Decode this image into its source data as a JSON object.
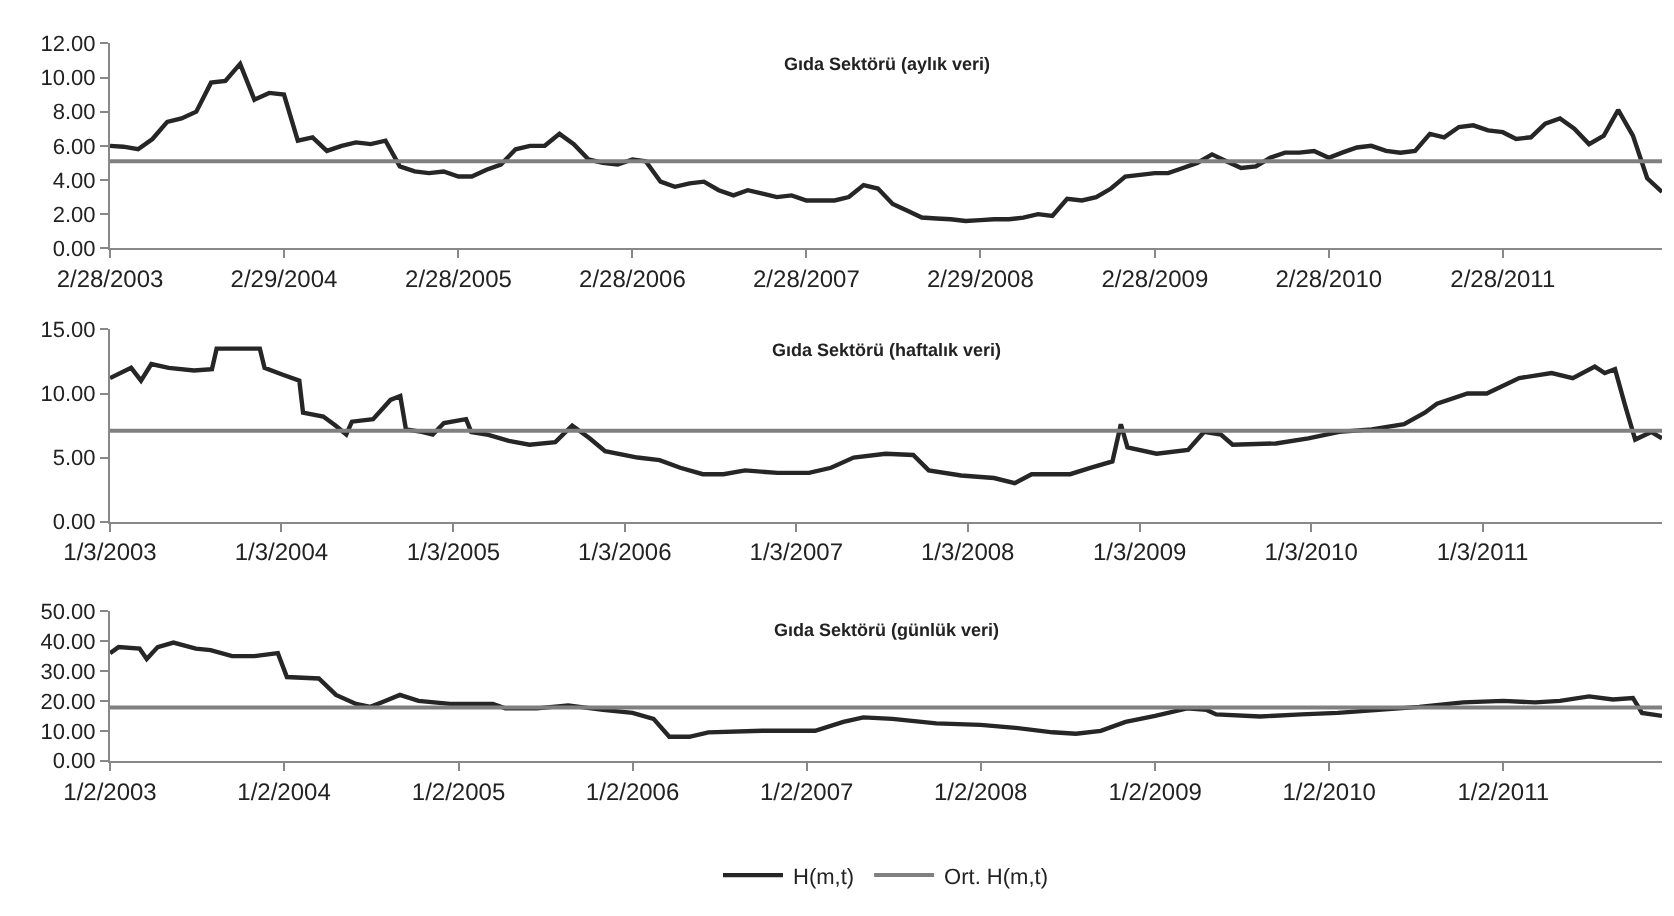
{
  "chart_data": [
    {
      "type": "line",
      "title": "Gıda Sektörü (aylık veri)",
      "x": [
        "2003-02",
        "2003-03",
        "2003-04",
        "2003-05",
        "2003-06",
        "2003-07",
        "2003-08",
        "2003-09",
        "2003-10",
        "2003-11",
        "2003-12",
        "2004-01",
        "2004-02",
        "2004-03",
        "2004-04",
        "2004-05",
        "2004-06",
        "2004-07",
        "2004-08",
        "2004-09",
        "2004-10",
        "2004-11",
        "2004-12",
        "2005-01",
        "2005-02",
        "2005-03",
        "2005-04",
        "2005-05",
        "2005-06",
        "2005-07",
        "2005-08",
        "2005-09",
        "2005-10",
        "2005-11",
        "2005-12",
        "2006-01",
        "2006-02",
        "2006-03",
        "2006-04",
        "2006-05",
        "2006-06",
        "2006-07",
        "2006-08",
        "2006-09",
        "2006-10",
        "2006-11",
        "2006-12",
        "2007-01",
        "2007-02",
        "2007-03",
        "2007-04",
        "2007-05",
        "2007-06",
        "2007-07",
        "2007-08",
        "2007-09",
        "2007-10",
        "2007-11",
        "2007-12",
        "2008-01",
        "2008-02",
        "2008-03",
        "2008-04",
        "2008-05",
        "2008-06",
        "2008-07",
        "2008-08",
        "2008-09",
        "2008-10",
        "2008-11",
        "2008-12",
        "2009-01",
        "2009-02",
        "2009-03",
        "2009-04",
        "2009-05",
        "2009-06",
        "2009-07",
        "2009-08",
        "2009-09",
        "2009-10",
        "2009-11",
        "2009-12",
        "2010-01",
        "2010-02",
        "2010-03",
        "2010-04",
        "2010-05",
        "2010-06",
        "2010-07",
        "2010-08",
        "2010-09",
        "2010-10",
        "2010-11",
        "2010-12",
        "2011-01",
        "2011-02",
        "2011-03",
        "2011-04",
        "2011-05",
        "2011-06",
        "2011-07",
        "2011-08",
        "2011-09",
        "2011-10",
        "2011-11",
        "2011-12",
        "2012-01"
      ],
      "series": [
        {
          "color": "#262626",
          "values": [
            6.0,
            5.95,
            5.8,
            6.4,
            7.4,
            7.6,
            8.0,
            9.7,
            9.8,
            10.8,
            8.7,
            9.1,
            9.0,
            6.3,
            6.5,
            5.7,
            6.0,
            6.2,
            6.1,
            6.3,
            4.8,
            4.5,
            4.4,
            4.5,
            4.2,
            4.2,
            4.6,
            4.9,
            5.8,
            6.0,
            6.0,
            6.7,
            6.1,
            5.2,
            5.0,
            4.9,
            5.2,
            5.1,
            3.9,
            3.6,
            3.8,
            3.9,
            3.4,
            3.1,
            3.4,
            3.2,
            3.0,
            3.1,
            2.8,
            2.8,
            2.8,
            3.0,
            3.7,
            3.5,
            2.6,
            2.2,
            1.8,
            1.75,
            1.7,
            1.6,
            1.65,
            1.7,
            1.7,
            1.8,
            2.0,
            1.9,
            2.9,
            2.8,
            3.0,
            3.5,
            4.2,
            4.3,
            4.4,
            4.4,
            4.7,
            5.0,
            5.5,
            5.1,
            4.7,
            4.8,
            5.3,
            5.6,
            5.6,
            5.7,
            5.3,
            5.6,
            5.9,
            6.0,
            5.7,
            5.6,
            5.7,
            6.7,
            6.5,
            7.1,
            7.2,
            6.9,
            6.8,
            6.4,
            6.5,
            7.3,
            7.6,
            7.0,
            6.1,
            6.6,
            8.1,
            6.6,
            4.1,
            3.3
          ]
        }
      ],
      "ref_lines": [
        {
          "axis": "y",
          "value": 5.1,
          "color": "#808080"
        }
      ],
      "xlim": [
        "2003-02",
        "2012-01"
      ],
      "xticks": [
        {
          "value": "2003-02",
          "label": "2/28/2003"
        },
        {
          "value": "2004-02",
          "label": "2/29/2004"
        },
        {
          "value": "2005-02",
          "label": "2/28/2005"
        },
        {
          "value": "2006-02",
          "label": "2/28/2006"
        },
        {
          "value": "2007-02",
          "label": "2/28/2007"
        },
        {
          "value": "2008-02",
          "label": "2/29/2008"
        },
        {
          "value": "2009-02",
          "label": "2/28/2009"
        },
        {
          "value": "2010-02",
          "label": "2/28/2010"
        },
        {
          "value": "2011-02",
          "label": "2/28/2011"
        }
      ],
      "ylim": [
        0,
        12
      ],
      "yticks": [
        {
          "value": 0,
          "label": "0.00"
        },
        {
          "value": 2,
          "label": "2.00"
        },
        {
          "value": 4,
          "label": "4.00"
        },
        {
          "value": 6,
          "label": "6.00"
        },
        {
          "value": 8,
          "label": "8.00"
        },
        {
          "value": 10,
          "label": "10.00"
        },
        {
          "value": 12,
          "label": "12.00"
        }
      ]
    },
    {
      "type": "line",
      "title": "Gıda Sektörü (haftalık veri)",
      "x": [
        "2003-01-03",
        "2003-02-17",
        "2003-03-10",
        "2003-04-01",
        "2003-05-08",
        "2003-07-01",
        "2003-08-08",
        "2003-08-18",
        "2003-11-18",
        "2003-11-28",
        "2004-01-03",
        "2004-02-10",
        "2004-02-18",
        "2004-04-01",
        "2004-04-27",
        "2004-05-20",
        "2004-06-01",
        "2004-07-16",
        "2004-08-22",
        "2004-09-12",
        "2004-09-24",
        "2004-10-28",
        "2004-11-20",
        "2004-12-14",
        "2005-01-30",
        "2005-02-10",
        "2005-03-15",
        "2005-05-01",
        "2005-06-14",
        "2005-08-08",
        "2005-09-13",
        "2005-10-20",
        "2005-11-22",
        "2006-01-30",
        "2006-03-18",
        "2006-05-01",
        "2006-06-18",
        "2006-08-01",
        "2006-09-16",
        "2006-11-24",
        "2007-01-30",
        "2007-03-18",
        "2007-05-05",
        "2007-07-12",
        "2007-09-09",
        "2007-10-12",
        "2007-12-20",
        "2008-02-28",
        "2008-04-12",
        "2008-05-18",
        "2008-08-08",
        "2008-09-20",
        "2008-11-06",
        "2008-11-24",
        "2008-12-08",
        "2009-02-08",
        "2009-04-16",
        "2009-05-20",
        "2009-06-25",
        "2009-07-20",
        "2009-10-20",
        "2009-12-28",
        "2010-03-04",
        "2010-05-12",
        "2010-07-20",
        "2010-09-02",
        "2010-09-28",
        "2010-12-02",
        "2011-01-12",
        "2011-03-22",
        "2011-05-30",
        "2011-07-14",
        "2011-08-30",
        "2011-09-20",
        "2011-10-12",
        "2011-11-03",
        "2011-11-24",
        "2011-12-28",
        "2012-01-20"
      ],
      "series": [
        {
          "color": "#262626",
          "values": [
            11.2,
            12.0,
            11.0,
            12.3,
            12.0,
            11.8,
            11.9,
            13.5,
            13.5,
            12.0,
            11.5,
            11.0,
            8.5,
            8.2,
            7.5,
            6.8,
            7.8,
            8.0,
            9.5,
            9.8,
            7.2,
            7.0,
            6.8,
            7.7,
            8.0,
            7.0,
            6.8,
            6.3,
            6.0,
            6.2,
            7.5,
            6.5,
            5.5,
            5.0,
            4.8,
            4.2,
            3.7,
            3.7,
            4.0,
            3.8,
            3.8,
            4.2,
            5.0,
            5.3,
            5.2,
            4.0,
            3.6,
            3.4,
            3.0,
            3.7,
            3.7,
            4.2,
            4.7,
            7.6,
            5.8,
            5.3,
            5.6,
            7.0,
            6.8,
            6.0,
            6.1,
            6.5,
            7.0,
            7.2,
            7.6,
            8.5,
            9.2,
            10.0,
            10.0,
            11.2,
            11.6,
            11.2,
            12.1,
            11.6,
            11.9,
            9.0,
            6.4,
            7.0,
            6.5
          ]
        }
      ],
      "ref_lines": [
        {
          "axis": "y",
          "value": 7.1,
          "color": "#808080"
        }
      ],
      "xlim": [
        "2003-01-03",
        "2012-01-20"
      ],
      "xticks": [
        {
          "value": "2003-01-03",
          "label": "1/3/2003"
        },
        {
          "value": "2004-01-03",
          "label": "1/3/2004"
        },
        {
          "value": "2005-01-03",
          "label": "1/3/2005"
        },
        {
          "value": "2006-01-03",
          "label": "1/3/2006"
        },
        {
          "value": "2007-01-03",
          "label": "1/3/2007"
        },
        {
          "value": "2008-01-03",
          "label": "1/3/2008"
        },
        {
          "value": "2009-01-03",
          "label": "1/3/2009"
        },
        {
          "value": "2010-01-03",
          "label": "1/3/2010"
        },
        {
          "value": "2011-01-03",
          "label": "1/3/2011"
        }
      ],
      "ylim": [
        0,
        15
      ],
      "yticks": [
        {
          "value": 0,
          "label": "0.00"
        },
        {
          "value": 5,
          "label": "5.00"
        },
        {
          "value": 10,
          "label": "10.00"
        },
        {
          "value": 15,
          "label": "15.00"
        }
      ]
    },
    {
      "type": "line",
      "title": "Gıda Sektörü (günlük veri)",
      "legend": "bottom",
      "series": [
        {
          "name": "H(m,t)",
          "color": "#262626",
          "x": [
            "2003-01-02",
            "2003-01-20",
            "2003-03-05",
            "2003-03-20",
            "2003-04-12",
            "2003-05-15",
            "2003-07-01",
            "2003-08-01",
            "2003-09-15",
            "2003-11-01",
            "2003-12-20",
            "2004-01-08",
            "2004-03-15",
            "2004-04-20",
            "2004-06-01",
            "2004-07-01",
            "2004-08-01",
            "2004-09-01",
            "2004-10-10",
            "2004-12-15",
            "2005-03-15",
            "2005-04-10",
            "2005-06-15",
            "2005-08-20",
            "2005-11-01",
            "2006-01-02",
            "2006-02-15",
            "2006-03-20",
            "2006-05-01",
            "2006-06-10",
            "2006-10-01",
            "2007-01-20",
            "2007-03-20",
            "2007-05-01",
            "2007-07-01",
            "2007-10-01",
            "2008-01-02",
            "2008-03-15",
            "2008-06-01",
            "2008-07-20",
            "2008-09-10",
            "2008-11-01",
            "2009-01-02",
            "2009-03-10",
            "2009-04-20",
            "2009-05-10",
            "2009-08-10",
            "2009-11-05",
            "2010-01-20",
            "2010-04-15",
            "2010-07-10",
            "2010-10-10",
            "2011-01-02",
            "2011-03-10",
            "2011-05-01",
            "2011-07-01",
            "2011-08-20",
            "2011-10-01",
            "2011-10-20",
            "2011-12-01"
          ],
          "values": [
            36,
            38,
            37.5,
            34,
            38,
            39.5,
            37.5,
            37,
            35,
            35,
            36,
            28,
            27.5,
            22,
            19,
            18,
            20,
            22,
            20,
            19,
            19,
            17.5,
            17.5,
            18.5,
            17,
            16,
            14,
            8,
            8,
            9.5,
            10,
            10,
            13,
            14.5,
            14,
            12.5,
            12,
            11,
            9.5,
            9,
            10,
            13,
            15,
            17.5,
            17,
            15.5,
            14.8,
            15.5,
            16,
            17,
            18,
            19.5,
            20,
            19.5,
            20,
            21.5,
            20.5,
            21,
            16,
            15
          ]
        },
        {
          "name": "Ort. H(m,t)",
          "color": "#808080",
          "x": [
            "2003-01-02",
            "2011-12-01"
          ],
          "values": [
            17.8,
            17.8
          ]
        }
      ],
      "xlim": [
        "2003-01-02",
        "2011-12-01"
      ],
      "xticks": [
        {
          "value": "2003-01-02",
          "label": "1/2/2003"
        },
        {
          "value": "2004-01-02",
          "label": "1/2/2004"
        },
        {
          "value": "2005-01-02",
          "label": "1/2/2005"
        },
        {
          "value": "2006-01-02",
          "label": "1/2/2006"
        },
        {
          "value": "2007-01-02",
          "label": "1/2/2007"
        },
        {
          "value": "2008-01-02",
          "label": "1/2/2008"
        },
        {
          "value": "2009-01-02",
          "label": "1/2/2009"
        },
        {
          "value": "2010-01-02",
          "label": "1/2/2010"
        },
        {
          "value": "2011-01-02",
          "label": "1/2/2011"
        }
      ],
      "ylim": [
        0,
        50
      ],
      "yticks": [
        {
          "value": 0,
          "label": "0.00"
        },
        {
          "value": 10,
          "label": "10.00"
        },
        {
          "value": 20,
          "label": "20.00"
        },
        {
          "value": 30,
          "label": "30.00"
        },
        {
          "value": 40,
          "label": "40.00"
        },
        {
          "value": 50,
          "label": "50.00"
        }
      ]
    }
  ]
}
